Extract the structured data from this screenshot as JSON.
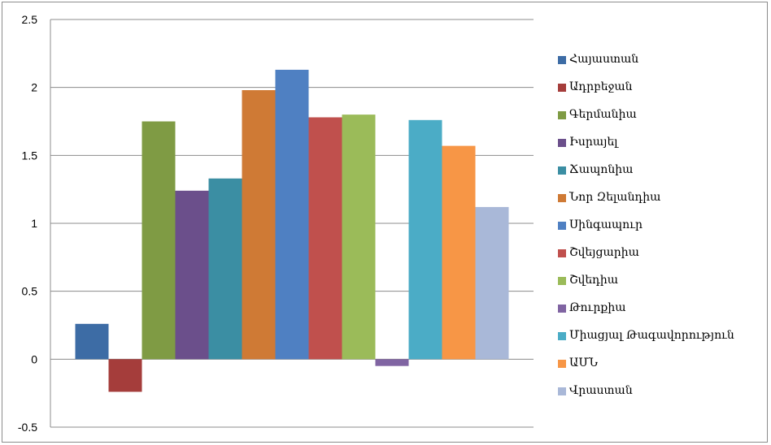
{
  "chart_data": {
    "type": "bar",
    "title": "",
    "xlabel": "",
    "ylabel": "",
    "ylim": [
      -0.5,
      2.5
    ],
    "yticks": [
      "2.5",
      "2",
      "1.5",
      "1",
      "0.5",
      "0",
      "-0.5"
    ],
    "grid": true,
    "legend_position": "right",
    "series": [
      {
        "name": "Հայաստան",
        "value": 0.26,
        "color": "#3d6ca5"
      },
      {
        "name": "Ադրբեջան",
        "value": -0.24,
        "color": "#a53d3b"
      },
      {
        "name": "Գերմանիա",
        "value": 1.75,
        "color": "#7f9b44"
      },
      {
        "name": "Իսրայել",
        "value": 1.24,
        "color": "#6b4f8b"
      },
      {
        "name": "Ճապոնիա",
        "value": 1.33,
        "color": "#3b8ea3"
      },
      {
        "name": "Նոր Զելանդիա",
        "value": 1.98,
        "color": "#cf7a35"
      },
      {
        "name": "Սինգապուր",
        "value": 2.13,
        "color": "#4f80c2"
      },
      {
        "name": "Շվեյցարիա",
        "value": 1.78,
        "color": "#c0504d"
      },
      {
        "name": "Շվեդիա",
        "value": 1.8,
        "color": "#9bbb59"
      },
      {
        "name": "Թուրքիա",
        "value": -0.05,
        "color": "#8064a2"
      },
      {
        "name": "Միացյալ Թագավորություն",
        "value": 1.76,
        "color": "#4bacc6"
      },
      {
        "name": "ԱՄՆ",
        "value": 1.57,
        "color": "#f79646"
      },
      {
        "name": "Վրաստան",
        "value": 1.12,
        "color": "#a9b8d8"
      }
    ]
  }
}
